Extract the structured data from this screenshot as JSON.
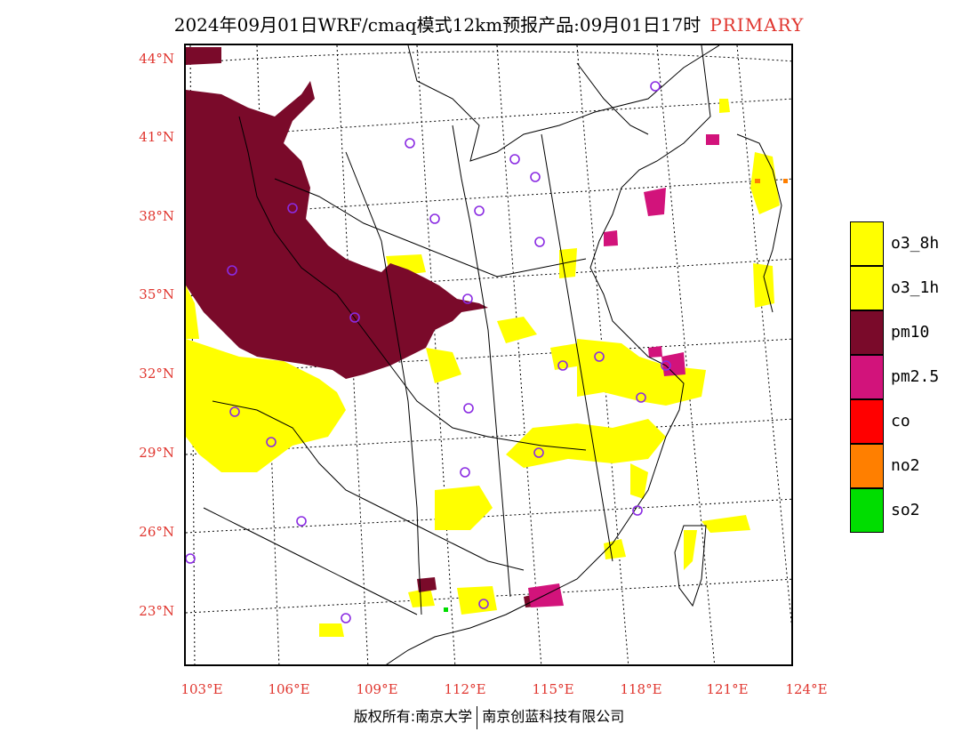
{
  "header": {
    "title": "2024年09月01日WRF/cmaq模式12km预报产品:09月01日17时",
    "tag": "PRIMARY"
  },
  "axes": {
    "lat_labels": [
      "44°N",
      "41°N",
      "38°N",
      "35°N",
      "32°N",
      "29°N",
      "26°N",
      "23°N"
    ],
    "lon_labels": [
      "103°E",
      "106°E",
      "109°E",
      "112°E",
      "115°E",
      "118°E",
      "121°E",
      "124°E"
    ]
  },
  "legend": {
    "items": [
      {
        "label": "o3_8h",
        "color": "#ffff00"
      },
      {
        "label": "o3_1h",
        "color": "#ffff00"
      },
      {
        "label": "pm10",
        "color": "#7a0a2a"
      },
      {
        "label": "pm2.5",
        "color": "#d2137b"
      },
      {
        "label": "co",
        "color": "#ff0000"
      },
      {
        "label": "no2",
        "color": "#ff7f00"
      },
      {
        "label": "so2",
        "color": "#00dd00"
      }
    ]
  },
  "footer": {
    "left": "版权所有:南京大学",
    "right": "南京创蓝科技有限公司"
  }
}
